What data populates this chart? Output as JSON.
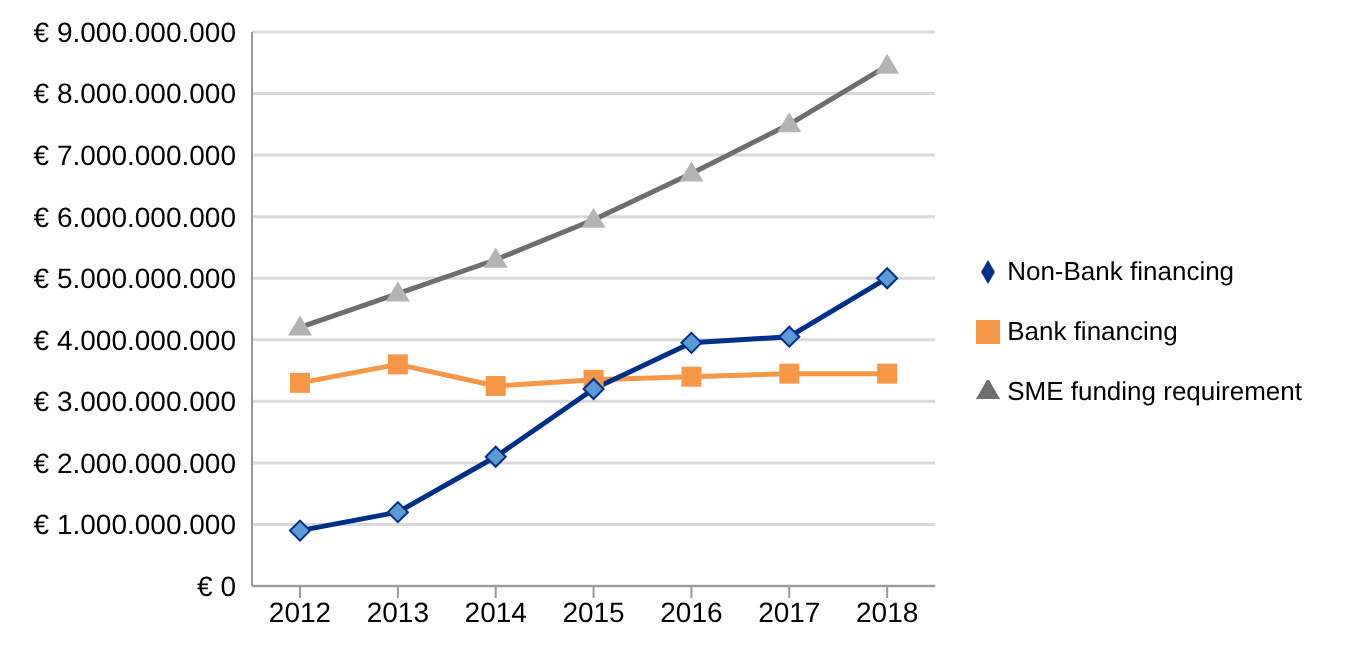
{
  "chart_data": {
    "type": "line",
    "categories": [
      "2012",
      "2013",
      "2014",
      "2015",
      "2016",
      "2017",
      "2018"
    ],
    "series": [
      {
        "name": "Non-Bank financing",
        "color": "#002f87",
        "marker": "diamond",
        "values": [
          900000000,
          1200000000,
          2100000000,
          3200000000,
          3950000000,
          4050000000,
          5000000000
        ]
      },
      {
        "name": "Bank financing",
        "color": "#f79646",
        "marker": "square",
        "values": [
          3300000000,
          3600000000,
          3250000000,
          3350000000,
          3400000000,
          3450000000,
          3450000000
        ]
      },
      {
        "name": "SME funding requirement",
        "color": "#6e6e6e",
        "marker": "triangle",
        "values": [
          4200000000,
          4750000000,
          5300000000,
          5950000000,
          6700000000,
          7500000000,
          8450000000
        ]
      }
    ],
    "ylim": [
      0,
      9000000000
    ],
    "yticks": [
      {
        "value": 0,
        "label": "€ 0"
      },
      {
        "value": 1000000000,
        "label": "€ 1.000.000.000"
      },
      {
        "value": 2000000000,
        "label": "€ 2.000.000.000"
      },
      {
        "value": 3000000000,
        "label": "€ 3.000.000.000"
      },
      {
        "value": 4000000000,
        "label": "€ 4.000.000.000"
      },
      {
        "value": 5000000000,
        "label": "€ 5.000.000.000"
      },
      {
        "value": 6000000000,
        "label": "€ 6.000.000.000"
      },
      {
        "value": 7000000000,
        "label": "€ 7.000.000.000"
      },
      {
        "value": 8000000000,
        "label": "€ 8.000.000.000"
      },
      {
        "value": 9000000000,
        "label": "€ 9.000.000.000"
      }
    ],
    "grid": "y",
    "legend": "right",
    "line_style": "solid"
  }
}
